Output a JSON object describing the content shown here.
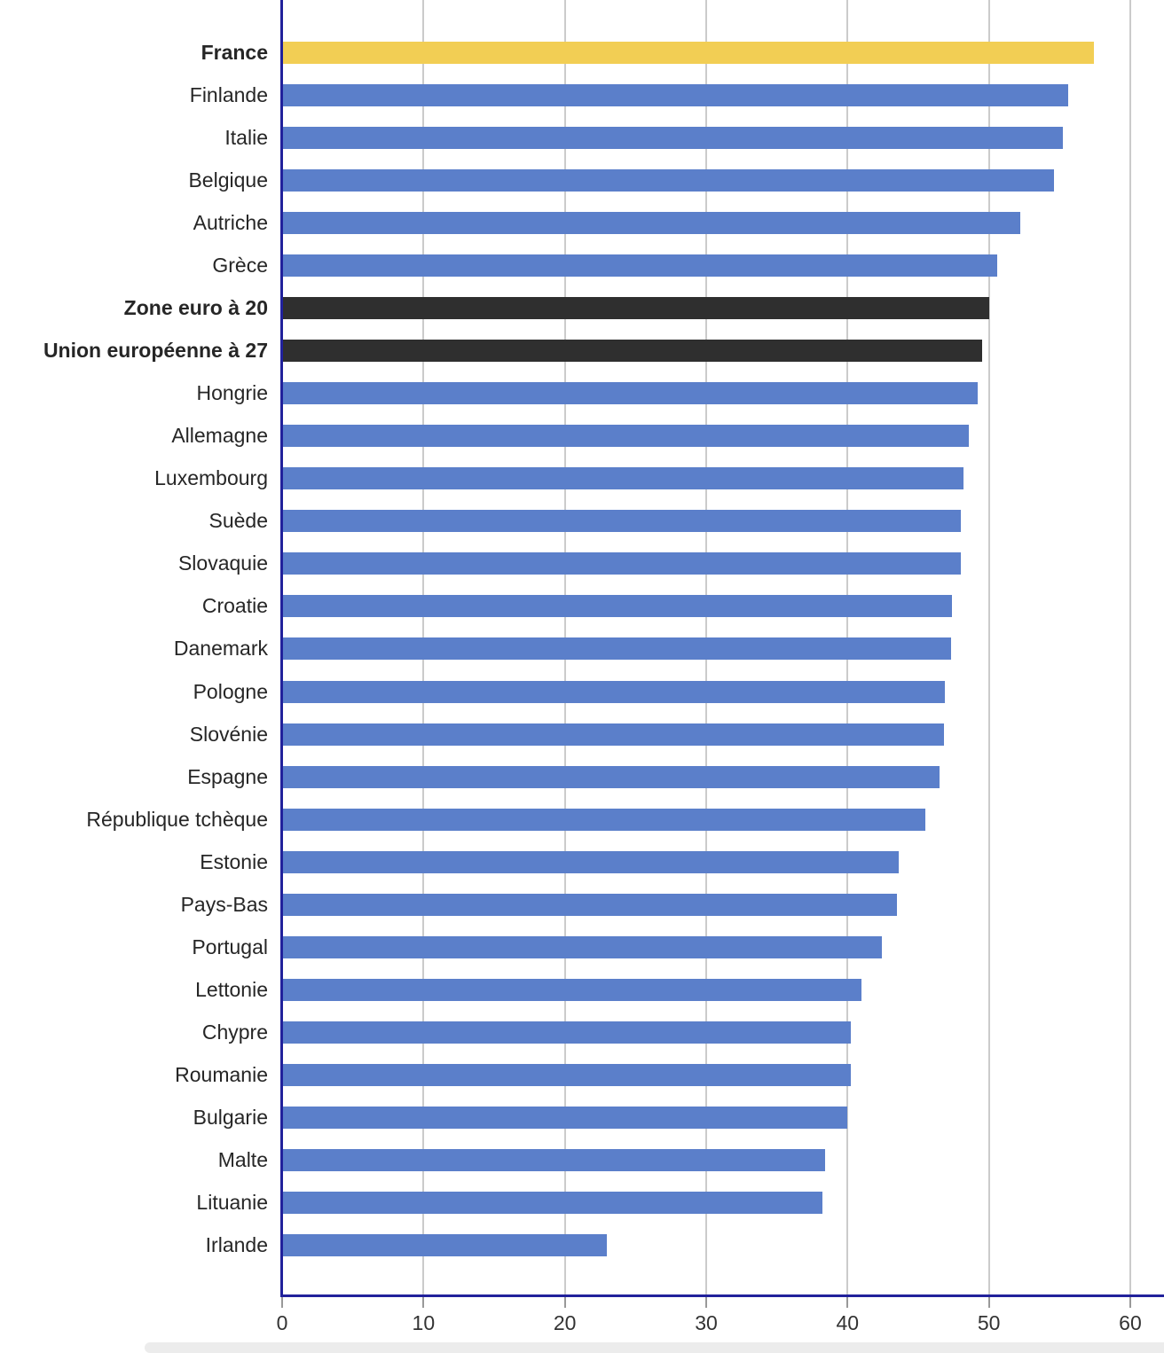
{
  "chart_data": {
    "type": "bar",
    "orientation": "horizontal",
    "title": "",
    "xlabel": "",
    "ylabel": "",
    "categories": [
      "France",
      "Finlande",
      "Italie",
      "Belgique",
      "Autriche",
      "Grèce",
      "Zone euro à 20",
      "Union européenne à 27",
      "Hongrie",
      "Allemagne",
      "Luxembourg",
      "Suède",
      "Slovaquie",
      "Croatie",
      "Danemark",
      "Pologne",
      "Slovénie",
      "Espagne",
      "République tchèque",
      "Estonie",
      "Pays-Bas",
      "Portugal",
      "Lettonie",
      "Chypre",
      "Roumanie",
      "Bulgarie",
      "Malte",
      "Lituanie",
      "Irlande"
    ],
    "values": [
      57.4,
      55.6,
      55.2,
      54.6,
      52.2,
      50.6,
      50.0,
      49.5,
      49.2,
      48.6,
      48.2,
      48.0,
      48.0,
      47.4,
      47.3,
      46.9,
      46.8,
      46.5,
      45.5,
      43.6,
      43.5,
      42.4,
      41.0,
      40.2,
      40.2,
      40.0,
      38.4,
      38.2,
      23.0
    ],
    "bar_styles": [
      "highlight",
      "default",
      "default",
      "default",
      "default",
      "default",
      "aggregate",
      "aggregate",
      "default",
      "default",
      "default",
      "default",
      "default",
      "default",
      "default",
      "default",
      "default",
      "default",
      "default",
      "default",
      "default",
      "default",
      "default",
      "default",
      "default",
      "default",
      "default",
      "default",
      "default"
    ],
    "bold_labels": [
      "France",
      "Zone euro à 20",
      "Union européenne à 27"
    ],
    "style_colors": {
      "default": "#5b7fca",
      "highlight": "#f2ce54",
      "aggregate": "#2f2f2f"
    },
    "x_ticks": [
      0,
      10,
      20,
      30,
      40,
      50,
      60
    ],
    "x_tick_labels": [
      "0",
      "10",
      "20",
      "30",
      "40",
      "50",
      "60"
    ],
    "xlim": [
      0,
      62.4
    ],
    "grid": "vertical",
    "legend": "none"
  },
  "colors": {
    "axis_line": "#21219b",
    "gridline": "#cbcbcb",
    "tick_mark": "#999999",
    "tick_label_color": "#333333",
    "category_label_color": "#262626",
    "background": "#ffffff",
    "bottom_strip": "#ececec"
  }
}
